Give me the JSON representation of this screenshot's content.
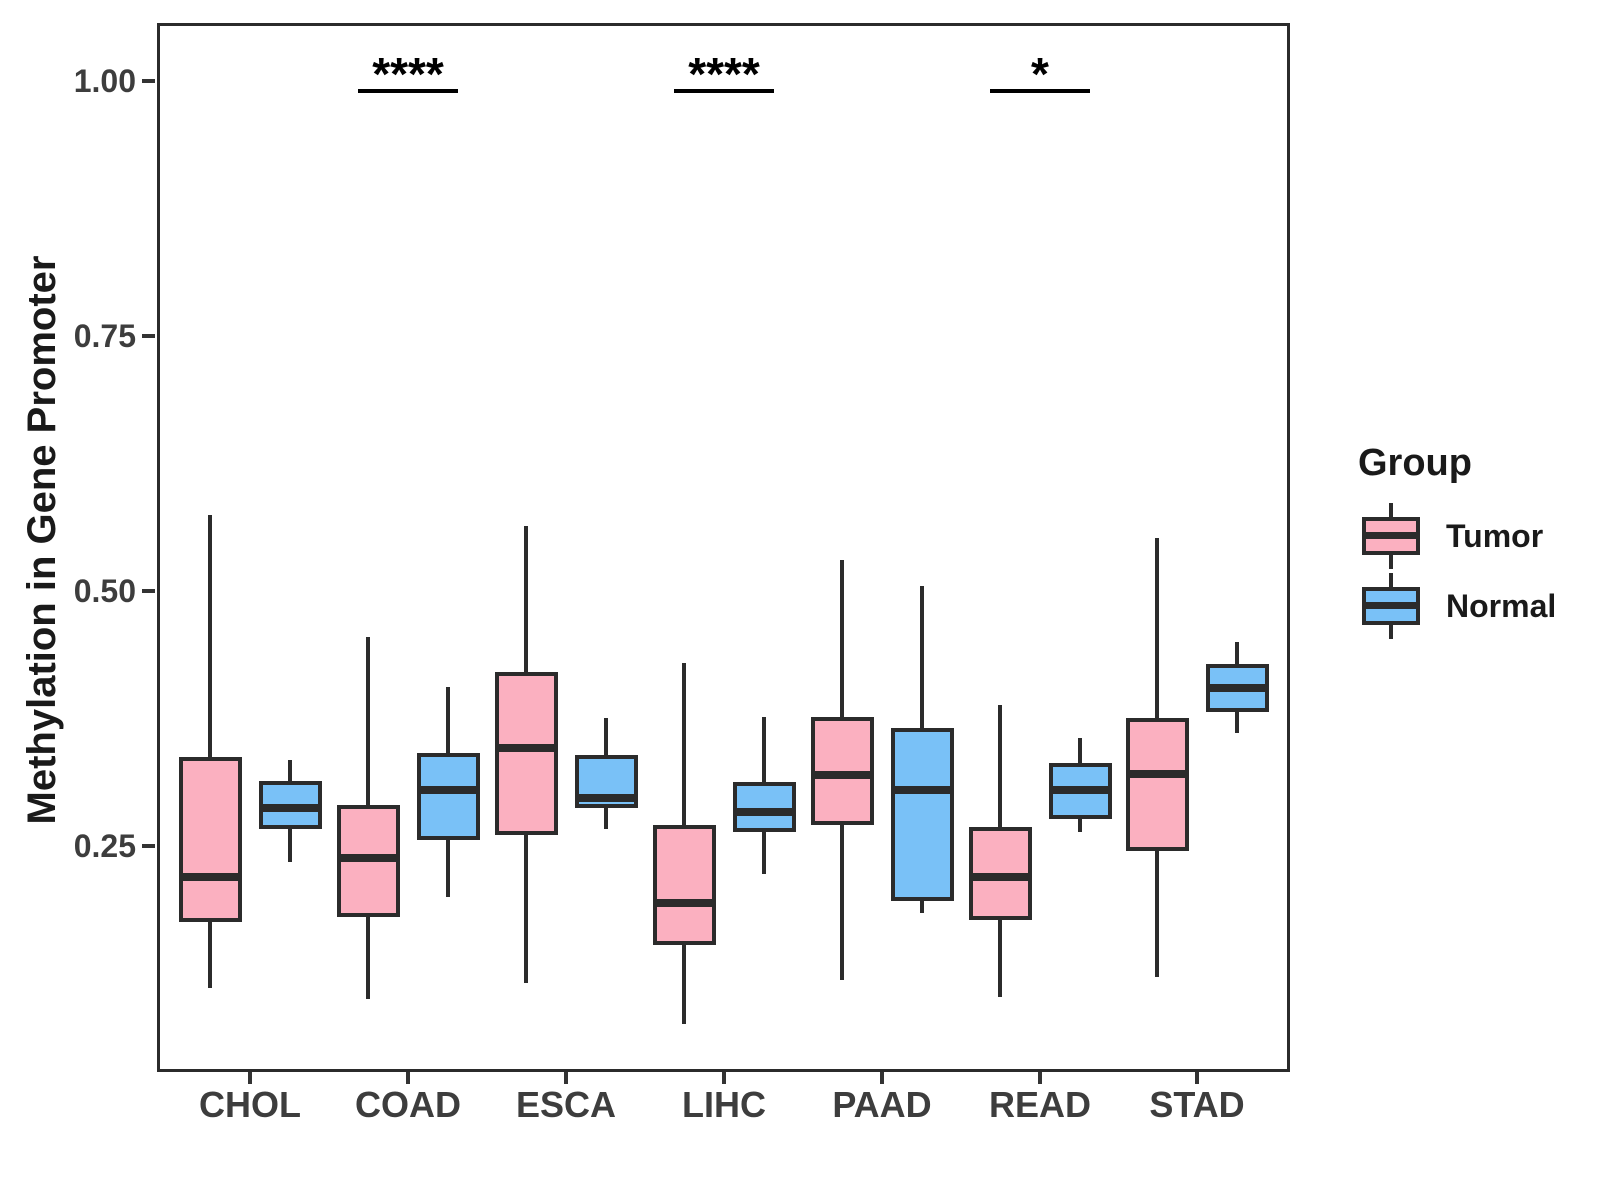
{
  "figure": {
    "y_axis_title": "Methylation in Gene Promoter",
    "legend": {
      "title": "Group",
      "items": [
        {
          "label": "Tumor",
          "color": "#FBB0C0"
        },
        {
          "label": "Normal",
          "color": "#79C1F7"
        }
      ]
    }
  },
  "chart_data": {
    "type": "boxplot",
    "title": "",
    "xlabel": "",
    "ylabel": "Methylation in Gene Promoter",
    "categories": [
      "CHOL",
      "COAD",
      "ESCA",
      "LIHC",
      "PAAD",
      "READ",
      "STAD"
    ],
    "y_ticks": [
      1.0,
      0.75,
      0.5,
      0.25
    ],
    "y_tick_labels": [
      "1.00",
      "0.75",
      "0.50",
      "0.25"
    ],
    "y_domain": [
      0.028,
      1.057
    ],
    "grid": false,
    "legend_position": "right",
    "colors": {
      "tumor": "#FBB0C0",
      "normal": "#79C1F7",
      "stroke": "#2b2b2b"
    },
    "series": [
      {
        "name": "Tumor",
        "color": "#FBB0C0",
        "boxes": [
          {
            "category": "CHOL",
            "low": 0.11,
            "q1": 0.175,
            "median": 0.219,
            "q3": 0.337,
            "high": 0.574
          },
          {
            "category": "COAD",
            "low": 0.1,
            "q1": 0.18,
            "median": 0.238,
            "q3": 0.29,
            "high": 0.455
          },
          {
            "category": "ESCA",
            "low": 0.115,
            "q1": 0.26,
            "median": 0.346,
            "q3": 0.42,
            "high": 0.564
          },
          {
            "category": "LIHC",
            "low": 0.075,
            "q1": 0.153,
            "median": 0.194,
            "q3": 0.27,
            "high": 0.429
          },
          {
            "category": "PAAD",
            "low": 0.118,
            "q1": 0.27,
            "median": 0.319,
            "q3": 0.376,
            "high": 0.53
          },
          {
            "category": "READ",
            "low": 0.102,
            "q1": 0.177,
            "median": 0.219,
            "q3": 0.268,
            "high": 0.388
          },
          {
            "category": "STAD",
            "low": 0.121,
            "q1": 0.245,
            "median": 0.32,
            "q3": 0.375,
            "high": 0.552
          }
        ]
      },
      {
        "name": "Normal",
        "color": "#79C1F7",
        "boxes": [
          {
            "category": "CHOL",
            "low": 0.234,
            "q1": 0.266,
            "median": 0.287,
            "q3": 0.313,
            "high": 0.334
          },
          {
            "category": "COAD",
            "low": 0.2,
            "q1": 0.256,
            "median": 0.305,
            "q3": 0.341,
            "high": 0.406
          },
          {
            "category": "ESCA",
            "low": 0.266,
            "q1": 0.287,
            "median": 0.297,
            "q3": 0.339,
            "high": 0.375
          },
          {
            "category": "LIHC",
            "low": 0.222,
            "q1": 0.263,
            "median": 0.283,
            "q3": 0.312,
            "high": 0.376
          },
          {
            "category": "PAAD",
            "low": 0.184,
            "q1": 0.196,
            "median": 0.305,
            "q3": 0.365,
            "high": 0.505
          },
          {
            "category": "READ",
            "low": 0.263,
            "q1": 0.276,
            "median": 0.305,
            "q3": 0.331,
            "high": 0.356
          },
          {
            "category": "STAD",
            "low": 0.361,
            "q1": 0.381,
            "median": 0.405,
            "q3": 0.428,
            "high": 0.45
          }
        ]
      }
    ],
    "significance": [
      {
        "category": "COAD",
        "label": "****",
        "bar_y": 0.99
      },
      {
        "category": "LIHC",
        "label": "****",
        "bar_y": 0.99
      },
      {
        "category": "READ",
        "label": "*",
        "bar_y": 0.99
      }
    ]
  }
}
